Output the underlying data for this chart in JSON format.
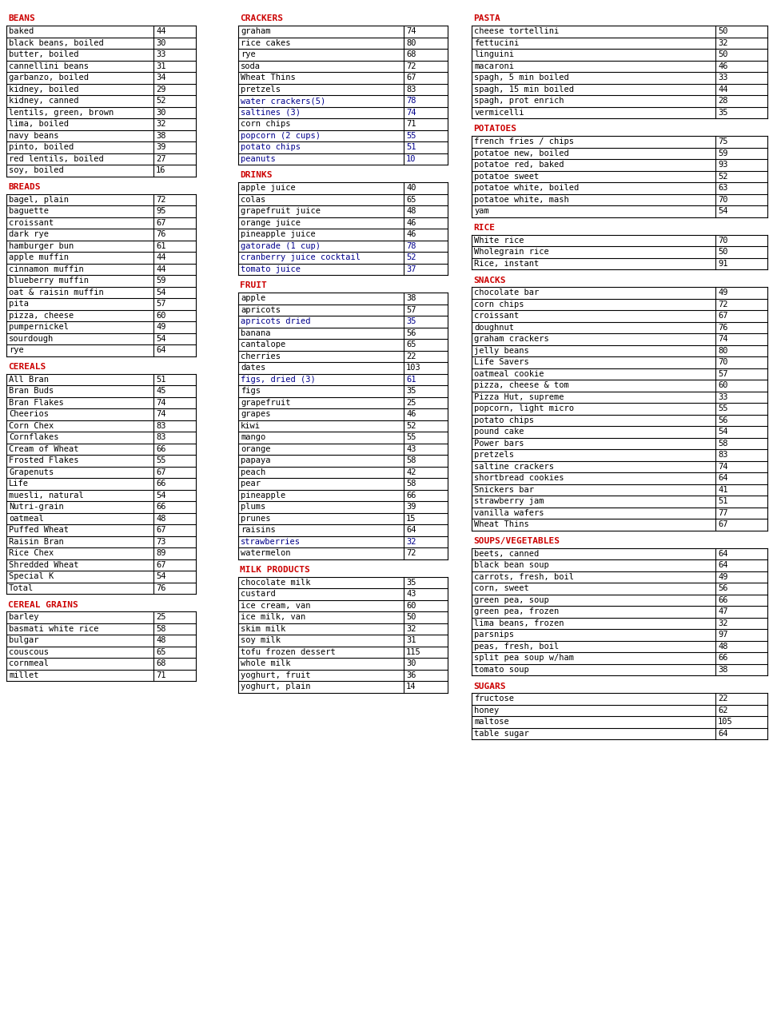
{
  "columns": [
    {
      "sections": [
        {
          "header": "BEANS",
          "items": [
            [
              "baked",
              "44",
              false
            ],
            [
              "black beans, boiled",
              "30",
              false
            ],
            [
              "butter, boiled",
              "33",
              false
            ],
            [
              "cannellini beans",
              "31",
              false
            ],
            [
              "garbanzo, boiled",
              "34",
              false
            ],
            [
              "kidney, boiled",
              "29",
              false
            ],
            [
              "kidney, canned",
              "52",
              false
            ],
            [
              "lentils, green, brown",
              "30",
              false
            ],
            [
              "lima, boiled",
              "32",
              false
            ],
            [
              "navy beans",
              "38",
              false
            ],
            [
              "pinto, boiled",
              "39",
              false
            ],
            [
              "red lentils, boiled",
              "27",
              false
            ],
            [
              "soy, boiled",
              "16",
              false
            ]
          ]
        },
        {
          "header": "BREADS",
          "items": [
            [
              "bagel, plain",
              "72",
              false
            ],
            [
              "baguette",
              "95",
              false
            ],
            [
              "croissant",
              "67",
              false
            ],
            [
              "dark rye",
              "76",
              false
            ],
            [
              "hamburger bun",
              "61",
              false
            ],
            [
              "apple muffin",
              "44",
              false
            ],
            [
              "cinnamon muffin",
              "44",
              false
            ],
            [
              "blueberry muffin",
              "59",
              false
            ],
            [
              "oat & raisin muffin",
              "54",
              false
            ],
            [
              "pita",
              "57",
              false
            ],
            [
              "pizza, cheese",
              "60",
              false
            ],
            [
              "pumpernickel",
              "49",
              false
            ],
            [
              "sourdough",
              "54",
              false
            ],
            [
              "rye",
              "64",
              false
            ]
          ]
        },
        {
          "header": "CEREALS",
          "items": [
            [
              "All Bran",
              "51",
              false
            ],
            [
              "Bran Buds",
              "45",
              false
            ],
            [
              "Bran Flakes",
              "74",
              false
            ],
            [
              "Cheerios",
              "74",
              false
            ],
            [
              "Corn Chex",
              "83",
              false
            ],
            [
              "Cornflakes",
              "83",
              false
            ],
            [
              "Cream of Wheat",
              "66",
              false
            ],
            [
              "Frosted Flakes",
              "55",
              false
            ],
            [
              "Grapenuts",
              "67",
              false
            ],
            [
              "Life",
              "66",
              false
            ],
            [
              "muesli, natural",
              "54",
              false
            ],
            [
              "Nutri-grain",
              "66",
              false
            ],
            [
              "oatmeal",
              "48",
              false
            ],
            [
              "Puffed Wheat",
              "67",
              false
            ],
            [
              "Raisin Bran",
              "73",
              false
            ],
            [
              "Rice Chex",
              "89",
              false
            ],
            [
              "Shredded Wheat",
              "67",
              false
            ],
            [
              "Special K",
              "54",
              false
            ],
            [
              "Total",
              "76",
              false
            ]
          ]
        },
        {
          "header": "CEREAL GRAINS",
          "items": [
            [
              "barley",
              "25",
              false
            ],
            [
              "basmati white rice",
              "58",
              false
            ],
            [
              "bulgar",
              "48",
              false
            ],
            [
              "couscous",
              "65",
              false
            ],
            [
              "cornmeal",
              "68",
              false
            ],
            [
              "millet",
              "71",
              false
            ]
          ]
        }
      ]
    },
    {
      "sections": [
        {
          "header": "CRACKERS",
          "items": [
            [
              "graham",
              "74",
              false
            ],
            [
              "rice cakes",
              "80",
              false
            ],
            [
              "rye",
              "68",
              false
            ],
            [
              "soda",
              "72",
              false
            ],
            [
              "Wheat Thins",
              "67",
              false
            ],
            [
              "pretzels",
              "83",
              false
            ],
            [
              "water crackers(5)",
              "78",
              true
            ],
            [
              "saltines (3)",
              "74",
              true
            ],
            [
              "corn chips",
              "71",
              false
            ],
            [
              "popcorn (2 cups)",
              "55",
              true
            ],
            [
              "potato chips",
              "51",
              true
            ],
            [
              "peanuts",
              "10",
              true
            ]
          ]
        },
        {
          "header": "DRINKS",
          "items": [
            [
              "apple juice",
              "40",
              false
            ],
            [
              "colas",
              "65",
              false
            ],
            [
              "grapefruit juice",
              "48",
              false
            ],
            [
              "orange juice",
              "46",
              false
            ],
            [
              "pineapple juice",
              "46",
              false
            ],
            [
              "gatorade (1 cup)",
              "78",
              true
            ],
            [
              "cranberry juice cocktail",
              "52",
              true
            ],
            [
              "tomato juice",
              "37",
              true
            ]
          ]
        },
        {
          "header": "FRUIT",
          "items": [
            [
              "apple",
              "38",
              false
            ],
            [
              "apricots",
              "57",
              false
            ],
            [
              "apricots dried",
              "35",
              true
            ],
            [
              "banana",
              "56",
              false
            ],
            [
              "cantalope",
              "65",
              false
            ],
            [
              "cherries",
              "22",
              false
            ],
            [
              "dates",
              "103",
              false
            ],
            [
              "figs, dried (3)",
              "61",
              true
            ],
            [
              "figs",
              "35",
              false
            ],
            [
              "grapefruit",
              "25",
              false
            ],
            [
              "grapes",
              "46",
              false
            ],
            [
              "kiwi",
              "52",
              false
            ],
            [
              "mango",
              "55",
              false
            ],
            [
              "orange",
              "43",
              false
            ],
            [
              "papaya",
              "58",
              false
            ],
            [
              "peach",
              "42",
              false
            ],
            [
              "pear",
              "58",
              false
            ],
            [
              "pineapple",
              "66",
              false
            ],
            [
              "plums",
              "39",
              false
            ],
            [
              "prunes",
              "15",
              false
            ],
            [
              "raisins",
              "64",
              false
            ],
            [
              "strawberries",
              "32",
              true
            ],
            [
              "watermelon",
              "72",
              false
            ]
          ]
        },
        {
          "header": "MILK PRODUCTS",
          "items": [
            [
              "chocolate milk",
              "35",
              false
            ],
            [
              "custard",
              "43",
              false
            ],
            [
              "ice cream, van",
              "60",
              false
            ],
            [
              "ice milk, van",
              "50",
              false
            ],
            [
              "skim milk",
              "32",
              false
            ],
            [
              "soy milk",
              "31",
              false
            ],
            [
              "tofu frozen dessert",
              "115",
              false
            ],
            [
              "whole milk",
              "30",
              false
            ],
            [
              "yoghurt, fruit",
              "36",
              false
            ],
            [
              "yoghurt, plain",
              "14",
              false
            ]
          ]
        }
      ]
    },
    {
      "sections": [
        {
          "header": "PASTA",
          "items": [
            [
              "cheese tortellini",
              "50",
              false
            ],
            [
              "fettucini",
              "32",
              false
            ],
            [
              "linguini",
              "50",
              false
            ],
            [
              "macaroni",
              "46",
              false
            ],
            [
              "spagh, 5 min boiled",
              "33",
              false
            ],
            [
              "spagh, 15 min boiled",
              "44",
              false
            ],
            [
              "spagh, prot enrich",
              "28",
              false
            ],
            [
              "vermicelli",
              "35",
              false
            ]
          ]
        },
        {
          "header": "POTATOES",
          "items": [
            [
              "french fries / chips",
              "75",
              false
            ],
            [
              "potatoe new, boiled",
              "59",
              false
            ],
            [
              "potatoe red, baked",
              "93",
              false
            ],
            [
              "potatoe sweet",
              "52",
              false
            ],
            [
              "potatoe white, boiled",
              "63",
              false
            ],
            [
              "potatoe white, mash",
              "70",
              false
            ],
            [
              "yam",
              "54",
              false
            ]
          ]
        },
        {
          "header": "RICE",
          "items": [
            [
              "White rice",
              "70",
              false
            ],
            [
              "Wholegrain rice",
              "50",
              false
            ],
            [
              "Rice, instant",
              "91",
              false
            ]
          ]
        },
        {
          "header": "SNACKS",
          "items": [
            [
              "chocolate bar",
              "49",
              false
            ],
            [
              "corn chips",
              "72",
              false
            ],
            [
              "croissant",
              "67",
              false
            ],
            [
              "doughnut",
              "76",
              false
            ],
            [
              "graham crackers",
              "74",
              false
            ],
            [
              "jelly beans",
              "80",
              false
            ],
            [
              "Life Savers",
              "70",
              false
            ],
            [
              "oatmeal cookie",
              "57",
              false
            ],
            [
              "pizza, cheese & tom",
              "60",
              false
            ],
            [
              "Pizza Hut, supreme",
              "33",
              false
            ],
            [
              "popcorn, light micro",
              "55",
              false
            ],
            [
              "potato chips",
              "56",
              false
            ],
            [
              "pound cake",
              "54",
              false
            ],
            [
              "Power bars",
              "58",
              false
            ],
            [
              "pretzels",
              "83",
              false
            ],
            [
              "saltine crackers",
              "74",
              false
            ],
            [
              "shortbread cookies",
              "64",
              false
            ],
            [
              "Snickers bar",
              "41",
              false
            ],
            [
              "strawberry jam",
              "51",
              false
            ],
            [
              "vanilla wafers",
              "77",
              false
            ],
            [
              "Wheat Thins",
              "67",
              false
            ]
          ]
        },
        {
          "header": "SOUPS/VEGETABLES",
          "items": [
            [
              "beets, canned",
              "64",
              false
            ],
            [
              "black bean soup",
              "64",
              false
            ],
            [
              "carrots, fresh, boil",
              "49",
              false
            ],
            [
              "corn, sweet",
              "56",
              false
            ],
            [
              "green pea, soup",
              "66",
              false
            ],
            [
              "green pea, frozen",
              "47",
              false
            ],
            [
              "lima beans, frozen",
              "32",
              false
            ],
            [
              "parsnips",
              "97",
              false
            ],
            [
              "peas, fresh, boil",
              "48",
              false
            ],
            [
              "split pea soup w/ham",
              "66",
              false
            ],
            [
              "tomato soup",
              "38",
              false
            ]
          ]
        },
        {
          "header": "SUGARS",
          "items": [
            [
              "fructose",
              "22",
              false
            ],
            [
              "honey",
              "62",
              false
            ],
            [
              "maltose",
              "105",
              false
            ],
            [
              "table sugar",
              "64",
              false
            ]
          ]
        }
      ]
    }
  ],
  "header_color": "#cc0000",
  "border_color": "#000000",
  "blue_color": "#00008b",
  "bg_color": "#ffffff",
  "text_color": "#000000"
}
